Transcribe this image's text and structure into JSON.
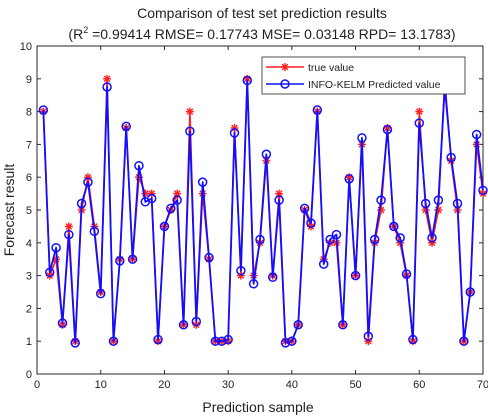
{
  "chart_data": {
    "type": "line",
    "title": "Comparison of test set prediction results",
    "subtitle_pre": "(R",
    "subtitle_sup": "2",
    "subtitle_post": " =0.99414 RMSE= 0.17743 MSE= 0.03148 RPD= 13.1783)",
    "xlabel": "Prediction sample",
    "ylabel": "Forecast result",
    "xlim": [
      0,
      70
    ],
    "ylim": [
      0,
      10
    ],
    "xticks": [
      0,
      10,
      20,
      30,
      40,
      50,
      60,
      70
    ],
    "yticks": [
      0,
      1,
      2,
      3,
      4,
      5,
      6,
      7,
      8,
      9,
      10
    ],
    "grid": false,
    "legend_position": "top-right",
    "x": [
      1,
      2,
      3,
      4,
      5,
      6,
      7,
      8,
      9,
      10,
      11,
      12,
      13,
      14,
      15,
      16,
      17,
      18,
      19,
      20,
      21,
      22,
      23,
      24,
      25,
      26,
      27,
      28,
      29,
      30,
      31,
      32,
      33,
      34,
      35,
      36,
      37,
      38,
      39,
      40,
      41,
      42,
      43,
      44,
      45,
      46,
      47,
      48,
      49,
      50,
      51,
      52,
      53,
      54,
      55,
      56,
      57,
      58,
      59,
      60,
      61,
      62,
      63,
      64,
      65,
      66,
      67,
      68,
      69,
      70
    ],
    "series": [
      {
        "name": "true value",
        "color": "#ff2020",
        "marker": "asterisk",
        "values": [
          8.0,
          3.0,
          3.5,
          1.5,
          4.5,
          1.0,
          5.0,
          6.0,
          4.5,
          2.5,
          9.0,
          1.0,
          3.5,
          7.5,
          3.5,
          6.0,
          5.5,
          5.5,
          1.0,
          4.5,
          5.0,
          5.5,
          1.5,
          8.0,
          1.5,
          5.5,
          3.5,
          1.0,
          1.0,
          1.0,
          7.5,
          3.0,
          9.0,
          3.0,
          4.0,
          6.5,
          3.0,
          5.5,
          1.0,
          1.0,
          1.5,
          5.0,
          4.5,
          8.0,
          3.5,
          4.0,
          4.0,
          1.5,
          6.0,
          3.0,
          7.0,
          1.0,
          4.0,
          5.0,
          7.5,
          4.5,
          4.0,
          3.0,
          1.0,
          8.0,
          5.0,
          4.0,
          5.0,
          9.0,
          6.5,
          5.0,
          1.0,
          2.5,
          7.0,
          5.5
        ]
      },
      {
        "name": "INFO-KELM Predicted value",
        "color": "#1010ff",
        "marker": "circle",
        "values": [
          8.05,
          3.1,
          3.85,
          1.55,
          4.25,
          0.95,
          5.2,
          5.85,
          4.35,
          2.45,
          8.75,
          1.0,
          3.45,
          7.55,
          3.5,
          6.35,
          5.25,
          5.35,
          1.05,
          4.5,
          5.05,
          5.3,
          1.5,
          7.4,
          1.6,
          5.85,
          3.55,
          1.0,
          1.0,
          1.05,
          7.35,
          3.15,
          8.95,
          2.75,
          4.1,
          6.7,
          2.95,
          5.3,
          0.95,
          1.0,
          1.5,
          5.05,
          4.6,
          8.05,
          3.35,
          4.1,
          4.25,
          1.5,
          5.95,
          3.0,
          7.2,
          1.15,
          4.1,
          5.3,
          7.45,
          4.5,
          4.15,
          3.05,
          1.05,
          7.65,
          5.2,
          4.15,
          5.3,
          8.75,
          6.6,
          5.2,
          1.0,
          2.5,
          7.3,
          5.6
        ]
      }
    ]
  }
}
